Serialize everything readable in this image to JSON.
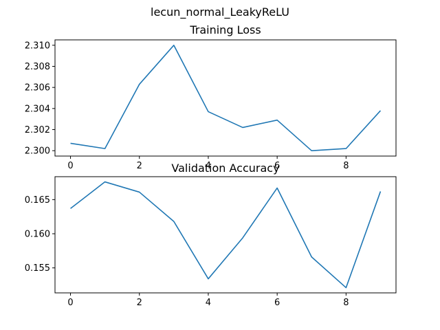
{
  "suptitle": "lecun_normal_LeakyReLU",
  "chart_data": [
    {
      "type": "line",
      "title": "Training Loss",
      "xlabel": "",
      "ylabel": "",
      "x": [
        0,
        1,
        2,
        3,
        4,
        5,
        6,
        7,
        8,
        9
      ],
      "series": [
        {
          "values": [
            2.3007,
            2.3002,
            2.3063,
            2.31,
            2.3037,
            2.3022,
            2.3029,
            2.3,
            2.3002,
            2.3038
          ]
        }
      ],
      "xlim": [
        -0.45,
        9.45
      ],
      "ylim": [
        2.29949,
        2.31051
      ],
      "xticks": [
        0,
        2,
        4,
        6,
        8
      ],
      "yticks": [
        2.3,
        2.302,
        2.304,
        2.306,
        2.308,
        2.31
      ],
      "xtick_labels": [
        "0",
        "2",
        "4",
        "6",
        "8"
      ],
      "ytick_labels": [
        "2.300",
        "2.302",
        "2.304",
        "2.306",
        "2.308",
        "2.310"
      ],
      "grid": false,
      "color": "#1f77b4"
    },
    {
      "type": "line",
      "title": "Validation Accuracy",
      "xlabel": "",
      "ylabel": "",
      "x": [
        0,
        1,
        2,
        3,
        4,
        5,
        6,
        7,
        8,
        9
      ],
      "series": [
        {
          "values": [
            0.1637,
            0.1676,
            0.1661,
            0.1618,
            0.1534,
            0.1594,
            0.1667,
            0.1566,
            0.1521,
            0.1662
          ]
        }
      ],
      "xlim": [
        -0.45,
        9.45
      ],
      "ylim": [
        0.15134,
        0.16836
      ],
      "xticks": [
        0,
        2,
        4,
        6,
        8
      ],
      "yticks": [
        0.155,
        0.16,
        0.165
      ],
      "xtick_labels": [
        "0",
        "2",
        "4",
        "6",
        "8"
      ],
      "ytick_labels": [
        "0.155",
        "0.160",
        "0.165"
      ],
      "grid": false,
      "color": "#1f77b4"
    }
  ]
}
